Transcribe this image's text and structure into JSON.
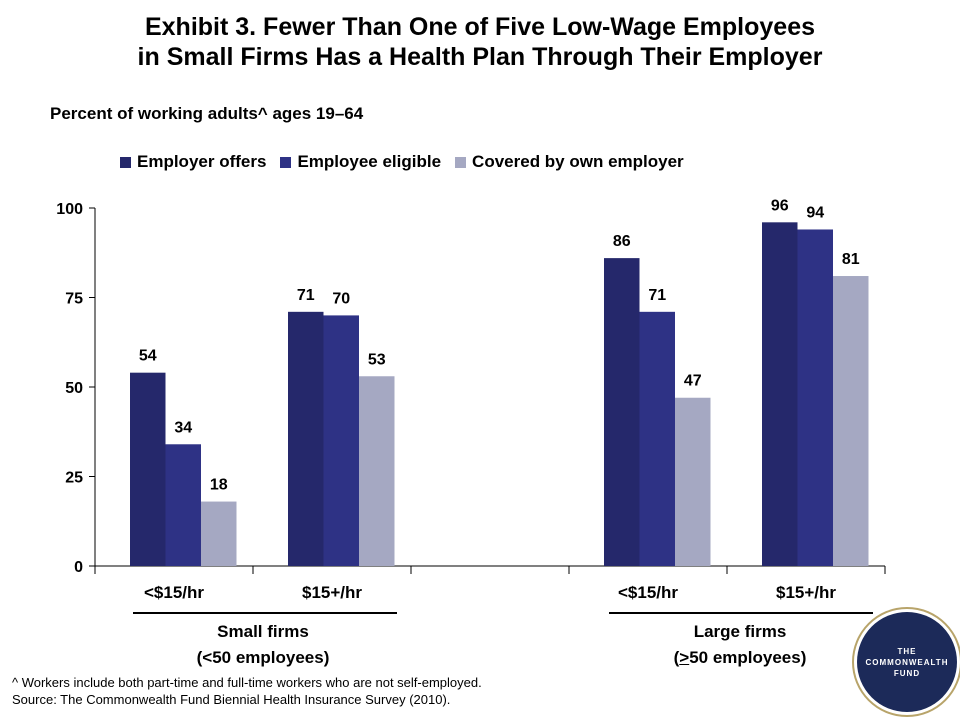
{
  "title_line1": "Exhibit 3. Fewer Than One of Five Low-Wage Employees",
  "title_line2": "in Small Firms Has a Health Plan Through Their Employer",
  "chart_data": {
    "type": "bar",
    "subtitle": "Percent of working adults^ ages 19–64",
    "categories": [
      "<$15/hr",
      "$15+/hr",
      "<$15/hr",
      "$15+/hr"
    ],
    "groups": [
      {
        "label_line1": "Small firms",
        "label_line2": "(<50 employees)",
        "categories": [
          0,
          1
        ]
      },
      {
        "label_line1": "Large firms",
        "label_line2": "(>50 employees)",
        "categories": [
          2,
          3
        ]
      }
    ],
    "series": [
      {
        "name": "Employer offers",
        "color": "#25286b",
        "values": [
          54,
          71,
          86,
          96
        ]
      },
      {
        "name": "Employee eligible",
        "color": "#2e3285",
        "values": [
          34,
          70,
          71,
          94
        ]
      },
      {
        "name": "Covered by own employer",
        "color": "#a5a8c2",
        "values": [
          18,
          53,
          47,
          81
        ]
      }
    ],
    "ylim": [
      0,
      100
    ],
    "yticks": [
      0,
      25,
      50,
      75,
      100
    ],
    "legend_position": "top",
    "grid": false
  },
  "footnote_line1": "^ Workers include both part-time and full-time workers who are not self-employed.",
  "footnote_line2": "Source: The Commonwealth Fund Biennial Health Insurance Survey (2010).",
  "logo": {
    "line1": "THE",
    "line2": "COMMONWEALTH",
    "line3": "FUND"
  }
}
